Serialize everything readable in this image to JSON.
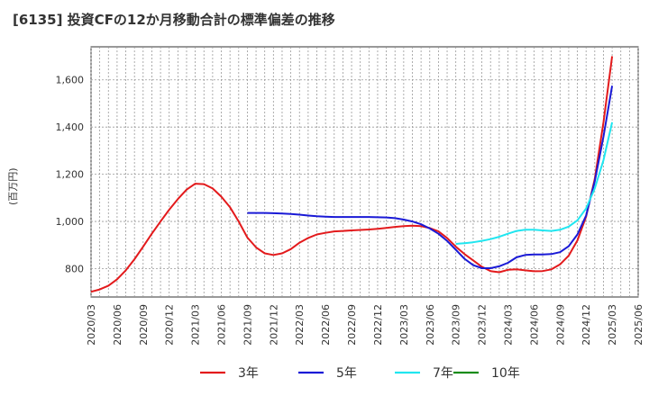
{
  "title": "[6135]  投資CFの12か月移動合計の標準偏差の推移",
  "y_unit_label": "(百万円)",
  "chart_data": {
    "type": "line",
    "title": "[6135]  投資CFの12か月移動合計の標準偏差の推移",
    "ylabel": "(百万円)",
    "xlabel": "",
    "ylim": [
      680,
      1740
    ],
    "yticks": [
      800,
      1000,
      1200,
      1400,
      1600
    ],
    "ytick_labels": [
      "800",
      "1,000",
      "1,200",
      "1,400",
      "1,600"
    ],
    "x_tick_labels": [
      "2020/03",
      "2020/06",
      "2020/09",
      "2020/12",
      "2021/03",
      "2021/06",
      "2021/09",
      "2021/12",
      "2022/03",
      "2022/06",
      "2022/09",
      "2022/12",
      "2023/03",
      "2023/06",
      "2023/09",
      "2023/12",
      "2024/03",
      "2024/06",
      "2024/09",
      "2024/12",
      "2025/03",
      "2025/06"
    ],
    "grid": true,
    "legend_position": "bottom",
    "series": [
      {
        "name": "3年",
        "color": "#e31a1c",
        "x": [
          "2020/03",
          "2020/04",
          "2020/05",
          "2020/06",
          "2020/07",
          "2020/08",
          "2020/09",
          "2020/10",
          "2020/11",
          "2020/12",
          "2021/01",
          "2021/02",
          "2021/03",
          "2021/04",
          "2021/05",
          "2021/06",
          "2021/07",
          "2021/08",
          "2021/09",
          "2021/10",
          "2021/11",
          "2021/12",
          "2022/01",
          "2022/02",
          "2022/03",
          "2022/04",
          "2022/05",
          "2022/06",
          "2022/07",
          "2022/08",
          "2022/09",
          "2022/10",
          "2022/11",
          "2022/12",
          "2023/01",
          "2023/02",
          "2023/03",
          "2023/04",
          "2023/05",
          "2023/06",
          "2023/07",
          "2023/08",
          "2023/09",
          "2023/10",
          "2023/11",
          "2023/12",
          "2024/01",
          "2024/02",
          "2024/03",
          "2024/04",
          "2024/05",
          "2024/06",
          "2024/07",
          "2024/08",
          "2024/09",
          "2024/10",
          "2024/11",
          "2024/12",
          "2025/01",
          "2025/02",
          "2025/03"
        ],
        "values": [
          702,
          712,
          728,
          755,
          793,
          840,
          893,
          948,
          1000,
          1050,
          1095,
          1135,
          1160,
          1158,
          1140,
          1105,
          1060,
          1000,
          932,
          890,
          865,
          858,
          865,
          883,
          910,
          930,
          945,
          952,
          958,
          960,
          962,
          964,
          966,
          969,
          973,
          977,
          980,
          982,
          980,
          972,
          958,
          930,
          893,
          862,
          835,
          808,
          790,
          785,
          795,
          797,
          793,
          789,
          790,
          797,
          818,
          855,
          920,
          1020,
          1180,
          1420,
          1700
        ]
      },
      {
        "name": "5年",
        "color": "#1a1ad6",
        "x": [
          "2021/09",
          "2021/10",
          "2021/11",
          "2021/12",
          "2022/01",
          "2022/02",
          "2022/03",
          "2022/04",
          "2022/05",
          "2022/06",
          "2022/07",
          "2022/08",
          "2022/09",
          "2022/10",
          "2022/11",
          "2022/12",
          "2023/01",
          "2023/02",
          "2023/03",
          "2023/04",
          "2023/05",
          "2023/06",
          "2023/07",
          "2023/08",
          "2023/09",
          "2023/10",
          "2023/11",
          "2023/12",
          "2024/01",
          "2024/02",
          "2024/03",
          "2024/04",
          "2024/05",
          "2024/06",
          "2024/07",
          "2024/08",
          "2024/09",
          "2024/10",
          "2024/11",
          "2024/12",
          "2025/01",
          "2025/02",
          "2025/03"
        ],
        "values": [
          1036,
          1036,
          1036,
          1035,
          1034,
          1032,
          1029,
          1025,
          1022,
          1020,
          1019,
          1019,
          1019,
          1019,
          1019,
          1018,
          1017,
          1014,
          1008,
          1000,
          988,
          970,
          948,
          918,
          880,
          842,
          815,
          802,
          802,
          810,
          825,
          848,
          858,
          860,
          860,
          862,
          870,
          895,
          945,
          1025,
          1170,
          1360,
          1575
        ]
      },
      {
        "name": "7年",
        "color": "#20e6f0",
        "x": [
          "2023/09",
          "2023/10",
          "2023/11",
          "2023/12",
          "2024/01",
          "2024/02",
          "2024/03",
          "2024/04",
          "2024/05",
          "2024/06",
          "2024/07",
          "2024/08",
          "2024/09",
          "2024/10",
          "2024/11",
          "2024/12",
          "2025/01",
          "2025/02",
          "2025/03"
        ],
        "values": [
          905,
          908,
          912,
          918,
          925,
          935,
          948,
          960,
          965,
          965,
          962,
          960,
          965,
          978,
          1005,
          1055,
          1140,
          1260,
          1420
        ]
      },
      {
        "name": "10年",
        "color": "#1a8c1a",
        "x": [],
        "values": []
      }
    ]
  }
}
